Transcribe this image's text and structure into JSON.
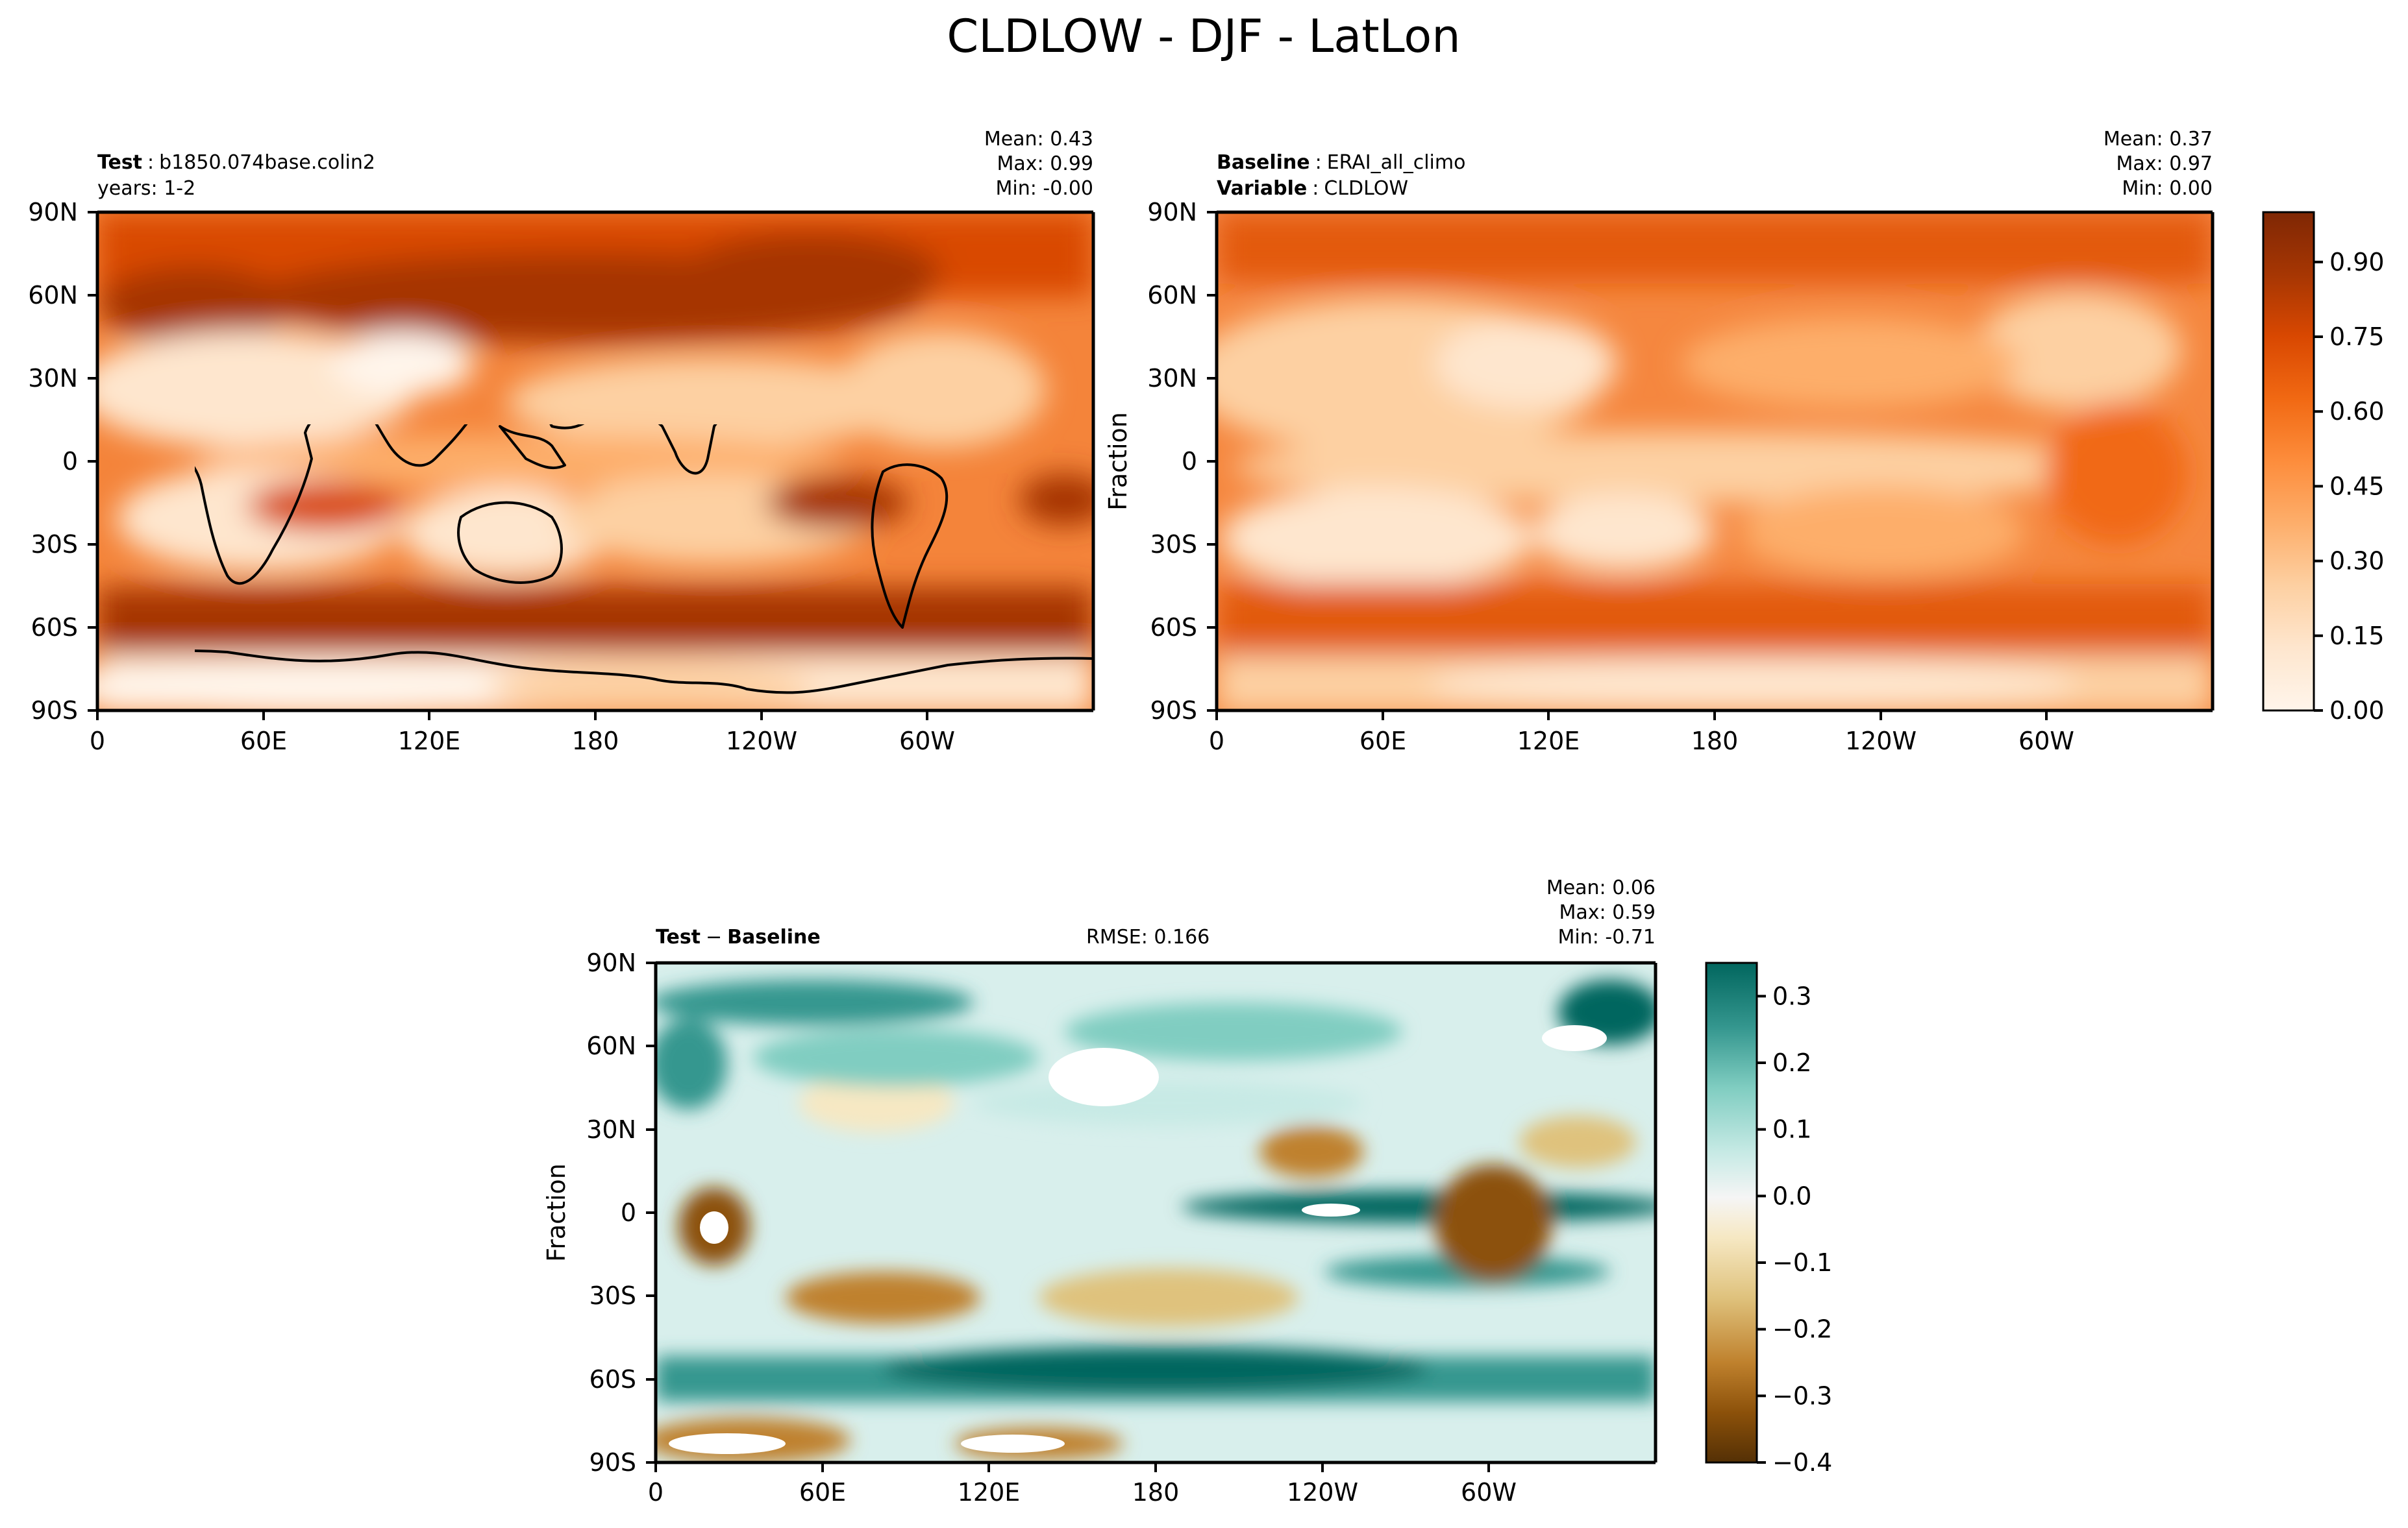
{
  "figure": {
    "title": "CLDLOW - DJF - LatLon"
  },
  "colors": {
    "oranges": [
      "#fff5eb",
      "#fee6ce",
      "#fdd0a2",
      "#fdae6b",
      "#fd8d3c",
      "#f16913",
      "#d94801",
      "#a63603",
      "#7f2704"
    ],
    "brbg": [
      "#543005",
      "#8c510a",
      "#bf812d",
      "#dfc27d",
      "#f6e8c3",
      "#f5f5f5",
      "#c7eae5",
      "#80cdc1",
      "#35978f",
      "#01665e",
      "#003c30"
    ]
  },
  "chart_data": [
    {
      "type": "heatmap",
      "panel": "test",
      "header_label": "Test",
      "header_value": "b1850.074base.colin2",
      "header_line2": "years: 1-2",
      "stats": {
        "mean_label": "Mean:  0.43",
        "max_label": "Max:  0.99",
        "min_label": "Min: -0.00"
      },
      "mean": 0.43,
      "max": 0.99,
      "min": -0.0,
      "ylabel": "",
      "x_ticks": [
        "0",
        "60E",
        "120E",
        "180",
        "120W",
        "60W"
      ],
      "y_ticks": [
        "90N",
        "60N",
        "30N",
        "0",
        "30S",
        "60S",
        "90S"
      ],
      "xlim": [
        0,
        360
      ],
      "ylim": [
        -90,
        90
      ]
    },
    {
      "type": "heatmap",
      "panel": "baseline",
      "header_label": "Baseline",
      "header_value": "ERAI_all_climo",
      "header_label2": "Variable",
      "header_value2": "CLDLOW",
      "stats": {
        "mean_label": "Mean:  0.37",
        "max_label": "Max:  0.97",
        "min_label": "Min:  0.00"
      },
      "mean": 0.37,
      "max": 0.97,
      "min": 0.0,
      "ylabel": "Fraction",
      "x_ticks": [
        "0",
        "60E",
        "120E",
        "180",
        "120W",
        "60W"
      ],
      "y_ticks": [
        "90N",
        "60N",
        "30N",
        "0",
        "30S",
        "60S",
        "90S"
      ],
      "xlim": [
        0,
        360
      ],
      "ylim": [
        -90,
        90
      ],
      "colorbar": {
        "range": [
          0.0,
          1.0
        ],
        "ticks": [
          "0.00",
          "0.15",
          "0.30",
          "0.45",
          "0.60",
          "0.75",
          "0.90"
        ],
        "tick_values": [
          0,
          0.15,
          0.3,
          0.45,
          0.6,
          0.75,
          0.9
        ]
      }
    },
    {
      "type": "heatmap",
      "panel": "difference",
      "header_label": "Test",
      "header_minus": "−",
      "header_value": "Baseline",
      "rmse_label": "RMSE: 0.166",
      "rmse": 0.166,
      "stats": {
        "mean_label": "Mean:  0.06",
        "max_label": "Max:  0.59",
        "min_label": "Min: -0.71"
      },
      "mean": 0.06,
      "max": 0.59,
      "min": -0.71,
      "ylabel": "Fraction",
      "x_ticks": [
        "0",
        "60E",
        "120E",
        "180",
        "120W",
        "60W"
      ],
      "y_ticks": [
        "90N",
        "60N",
        "30N",
        "0",
        "30S",
        "60S",
        "90S"
      ],
      "xlim": [
        0,
        360
      ],
      "ylim": [
        -90,
        90
      ],
      "colorbar": {
        "range": [
          -0.4,
          0.35
        ],
        "ticks": [
          "0.3",
          "0.2",
          "0.1",
          "0.0",
          "−0.1",
          "−0.2",
          "−0.3",
          "−0.4"
        ],
        "tick_values": [
          0.3,
          0.2,
          0.1,
          0.0,
          -0.1,
          -0.2,
          -0.3,
          -0.4
        ]
      }
    }
  ]
}
